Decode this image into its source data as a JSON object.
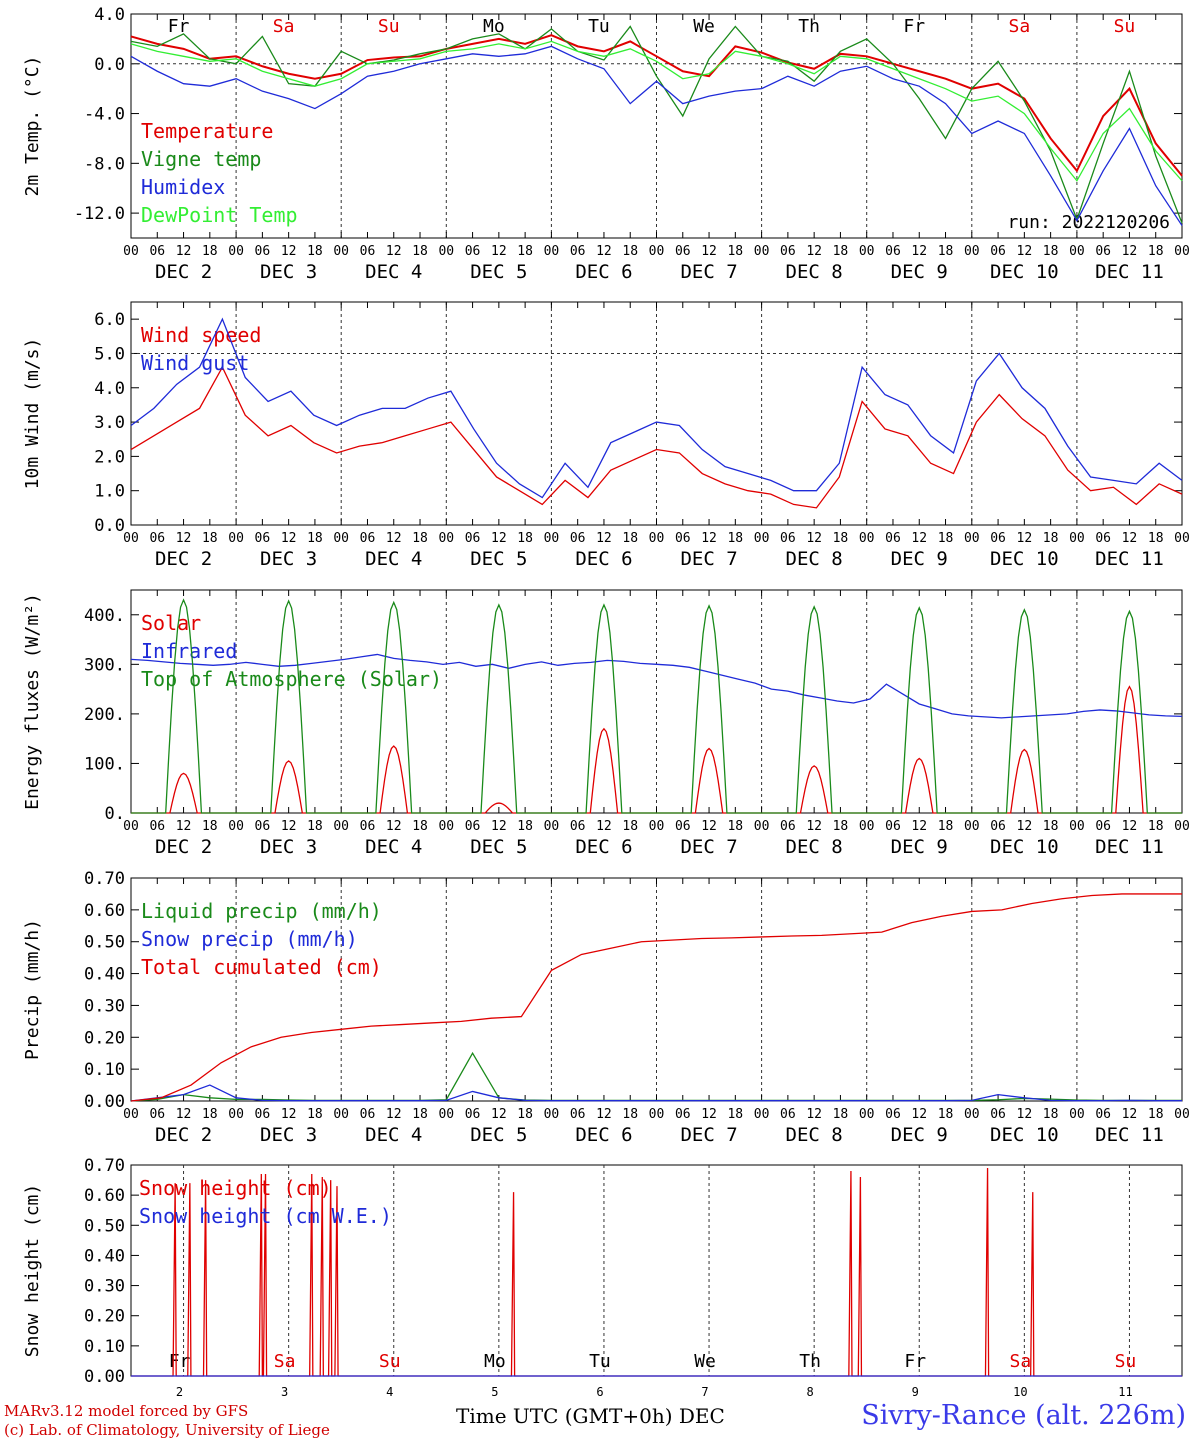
{
  "footer": {
    "model_line": "MARv3.12 model forced by GFS",
    "credit_line": "(c) Lab. of Climatology, University of Liege",
    "time_axis_label": "Time UTC (GMT+0h) DEC",
    "station": "Sivry-Rance (alt. 226m)"
  },
  "chart_data": [
    {
      "type": "line",
      "ylabel": "2m Temp. (°C)",
      "ylim": [
        -14,
        4
      ],
      "yticks": [
        "4.0",
        "0.0",
        "-4.0",
        "-8.0",
        "-12.0"
      ],
      "day_labels": [
        "Fr",
        "Sa",
        "Su",
        "Mo",
        "Tu",
        "We",
        "Th",
        "Fr",
        "Sa",
        "Su"
      ],
      "day_colors": [
        "#000000",
        "#e00000",
        "#e00000",
        "#000000",
        "#000000",
        "#000000",
        "#000000",
        "#000000",
        "#e00000",
        "#e00000"
      ],
      "date_labels": [
        "DEC  2",
        "DEC  3",
        "DEC  4",
        "DEC  5",
        "DEC  6",
        "DEC  7",
        "DEC  8",
        "DEC  9",
        "DEC 10",
        "DEC 11"
      ],
      "hour_labels": [
        "00",
        "06",
        "12",
        "18"
      ],
      "annotation": "run: 2022120206",
      "x_days": 10,
      "series": [
        {
          "name": "Temperature",
          "color": "#e00000",
          "values": [
            2.2,
            1.6,
            1.2,
            0.4,
            0.6,
            -0.2,
            -0.8,
            -1.2,
            -0.8,
            0.3,
            0.5,
            0.6,
            1.2,
            1.6,
            2.0,
            1.6,
            2.3,
            1.4,
            1.0,
            1.8,
            0.6,
            -0.6,
            -1.0,
            1.4,
            0.9,
            0.1,
            -0.4,
            0.8,
            0.6,
            0.0,
            -0.6,
            -1.2,
            -2.0,
            -1.6,
            -2.8,
            -6.0,
            -8.6,
            -4.2,
            -2.0,
            -6.4,
            -9.0
          ]
        },
        {
          "name": "Vigne temp",
          "color": "#1a8a1a",
          "values": [
            1.8,
            1.4,
            2.4,
            0.4,
            0.0,
            2.2,
            -1.6,
            -1.8,
            1.0,
            0.0,
            0.3,
            0.8,
            1.2,
            2.0,
            2.4,
            1.2,
            2.8,
            1.0,
            0.3,
            3.0,
            -1.0,
            -4.2,
            0.4,
            3.0,
            0.6,
            0.2,
            -1.4,
            1.0,
            2.0,
            0.0,
            -2.8,
            -6.0,
            -2.0,
            0.2,
            -3.0,
            -7.0,
            -12.5,
            -6.4,
            -0.6,
            -7.4,
            -12.8
          ]
        },
        {
          "name": "Humidex",
          "color": "#1f2bd8",
          "values": [
            0.6,
            -0.6,
            -1.6,
            -1.8,
            -1.2,
            -2.2,
            -2.8,
            -3.6,
            -2.4,
            -1.0,
            -0.6,
            0.0,
            0.4,
            0.8,
            0.6,
            0.8,
            1.4,
            0.4,
            -0.4,
            -3.2,
            -1.4,
            -3.2,
            -2.6,
            -2.2,
            -2.0,
            -1.0,
            -1.8,
            -0.6,
            -0.2,
            -1.2,
            -1.8,
            -3.2,
            -5.6,
            -4.6,
            -5.6,
            -9.0,
            -12.6,
            -8.6,
            -5.2,
            -9.8,
            -13.0
          ]
        },
        {
          "name": "DewPoint Temp",
          "color": "#33ee33",
          "values": [
            1.6,
            1.0,
            0.6,
            0.2,
            0.4,
            -0.6,
            -1.2,
            -1.8,
            -1.2,
            0.0,
            0.2,
            0.4,
            1.0,
            1.2,
            1.6,
            1.2,
            1.8,
            1.0,
            0.6,
            1.2,
            0.2,
            -1.2,
            -0.8,
            1.0,
            0.6,
            0.0,
            -0.8,
            0.6,
            0.4,
            -0.4,
            -1.2,
            -2.0,
            -3.0,
            -2.6,
            -4.0,
            -6.8,
            -9.4,
            -5.6,
            -3.6,
            -7.0,
            -9.4
          ]
        }
      ]
    },
    {
      "type": "line",
      "ylabel": "10m Wind (m/s)",
      "ylim": [
        0,
        6.5
      ],
      "yticks": [
        "6.0",
        "5.0",
        "4.0",
        "3.0",
        "2.0",
        "1.0",
        "0.0"
      ],
      "dashed_level": 5.0,
      "date_labels": [
        "DEC  2",
        "DEC  3",
        "DEC  4",
        "DEC  5",
        "DEC  6",
        "DEC  7",
        "DEC  8",
        "DEC  9",
        "DEC 10",
        "DEC 11"
      ],
      "hour_labels": [
        "00",
        "06",
        "12",
        "18"
      ],
      "x_days": 10,
      "series": [
        {
          "name": "Wind speed",
          "color": "#e00000",
          "values": [
            2.2,
            2.6,
            3.0,
            3.4,
            4.6,
            3.2,
            2.6,
            2.9,
            2.4,
            2.1,
            2.3,
            2.4,
            2.6,
            2.8,
            3.0,
            2.2,
            1.4,
            1.0,
            0.6,
            1.3,
            0.8,
            1.6,
            1.9,
            2.2,
            2.1,
            1.5,
            1.2,
            1.0,
            0.9,
            0.6,
            0.5,
            1.4,
            3.6,
            2.8,
            2.6,
            1.8,
            1.5,
            3.0,
            3.8,
            3.1,
            2.6,
            1.6,
            1.0,
            1.1,
            0.6,
            1.2,
            0.9
          ]
        },
        {
          "name": "Wind gust",
          "color": "#1f2bd8",
          "values": [
            2.9,
            3.4,
            4.1,
            4.6,
            6.0,
            4.3,
            3.6,
            3.9,
            3.2,
            2.9,
            3.2,
            3.4,
            3.4,
            3.7,
            3.9,
            2.8,
            1.8,
            1.2,
            0.8,
            1.8,
            1.1,
            2.4,
            2.7,
            3.0,
            2.9,
            2.2,
            1.7,
            1.5,
            1.3,
            1.0,
            1.0,
            1.8,
            4.6,
            3.8,
            3.5,
            2.6,
            2.1,
            4.2,
            5.0,
            4.0,
            3.4,
            2.3,
            1.4,
            1.3,
            1.2,
            1.8,
            1.3
          ]
        }
      ]
    },
    {
      "type": "line",
      "ylabel": "Energy fluxes (W/m²)",
      "ylim": [
        0,
        450
      ],
      "yticks": [
        "400.",
        "300.",
        "200.",
        "100.",
        "0."
      ],
      "date_labels": [
        "DEC  2",
        "DEC  3",
        "DEC  4",
        "DEC  5",
        "DEC  6",
        "DEC  7",
        "DEC  8",
        "DEC  9",
        "DEC 10",
        "DEC 11"
      ],
      "hour_labels": [
        "00",
        "06",
        "12",
        "18"
      ],
      "x_days": 10,
      "series": [
        {
          "name": "Solar",
          "color": "#e00000",
          "daily_peaks": [
            80,
            105,
            135,
            20,
            170,
            130,
            95,
            110,
            128,
            255
          ]
        },
        {
          "name": "Infrared",
          "color": "#1f2bd8",
          "values": [
            310,
            308,
            305,
            302,
            300,
            298,
            300,
            304,
            300,
            296,
            298,
            302,
            306,
            310,
            315,
            320,
            312,
            308,
            305,
            300,
            304,
            296,
            300,
            292,
            300,
            305,
            298,
            302,
            304,
            308,
            306,
            302,
            300,
            298,
            294,
            286,
            278,
            270,
            262,
            250,
            246,
            238,
            232,
            226,
            222,
            230,
            260,
            240,
            220,
            210,
            200,
            196,
            194,
            192,
            194,
            196,
            198,
            200,
            205,
            208,
            206,
            202,
            198,
            196,
            195
          ]
        },
        {
          "name": "Top of Atmosphere (Solar)",
          "color": "#1a8a1a",
          "daily_peaks": [
            430,
            428,
            425,
            420,
            420,
            418,
            416,
            414,
            410,
            407
          ]
        }
      ]
    },
    {
      "type": "line",
      "ylabel": "Precip (mm/h)",
      "ylim": [
        0,
        0.7
      ],
      "yticks": [
        "0.70",
        "0.60",
        "0.50",
        "0.40",
        "0.30",
        "0.20",
        "0.10",
        "0.00"
      ],
      "date_labels": [
        "DEC  2",
        "DEC  3",
        "DEC  4",
        "DEC  5",
        "DEC  6",
        "DEC  7",
        "DEC  8",
        "DEC  9",
        "DEC 10",
        "DEC 11"
      ],
      "hour_labels": [
        "00",
        "06",
        "12",
        "18"
      ],
      "x_days": 10,
      "series": [
        {
          "name": "Liquid precip (mm/h)",
          "color": "#1a8a1a",
          "values": [
            0,
            0.005,
            0.02,
            0.01,
            0.005,
            0.005,
            0.003,
            0.002,
            0.002,
            0.002,
            0.002,
            0.002,
            0.004,
            0.15,
            0.01,
            0.003,
            0.002,
            0.002,
            0.002,
            0.002,
            0.002,
            0.002,
            0.002,
            0.002,
            0.002,
            0.002,
            0.002,
            0.002,
            0.002,
            0.002,
            0.002,
            0.002,
            0.002,
            0.004,
            0.008,
            0.006,
            0.003,
            0.002,
            0.002,
            0.002,
            0.002
          ]
        },
        {
          "name": "Snow precip (mm/h)",
          "color": "#1f2bd8",
          "values": [
            0,
            0.01,
            0.02,
            0.05,
            0.01,
            0.002,
            0.001,
            0.001,
            0.001,
            0.001,
            0.001,
            0.001,
            0.002,
            0.03,
            0.01,
            0.002,
            0.001,
            0.001,
            0.001,
            0.001,
            0.001,
            0.001,
            0.001,
            0.001,
            0.001,
            0.001,
            0.001,
            0.001,
            0.001,
            0.001,
            0.001,
            0.001,
            0.002,
            0.02,
            0.01,
            0.002,
            0.001,
            0.001,
            0.002,
            0.001,
            0.001
          ]
        },
        {
          "name": "Total cumulated (cm)",
          "color": "#e00000",
          "values": [
            0.0,
            0.01,
            0.05,
            0.12,
            0.17,
            0.2,
            0.215,
            0.225,
            0.235,
            0.24,
            0.245,
            0.25,
            0.26,
            0.265,
            0.41,
            0.46,
            0.48,
            0.5,
            0.505,
            0.51,
            0.512,
            0.515,
            0.518,
            0.52,
            0.525,
            0.53,
            0.56,
            0.58,
            0.595,
            0.6,
            0.62,
            0.635,
            0.645,
            0.65,
            0.65,
            0.65
          ]
        }
      ]
    },
    {
      "type": "line",
      "ylabel": "Snow height (cm)",
      "ylim": [
        0,
        0.7
      ],
      "yticks": [
        "0.70",
        "0.60",
        "0.50",
        "0.40",
        "0.30",
        "0.20",
        "0.10",
        "0.00"
      ],
      "day_labels": [
        "Fr",
        "Sa",
        "Su",
        "Mo",
        "Tu",
        "We",
        "Th",
        "Fr",
        "Sa",
        "Su"
      ],
      "day_colors": [
        "#000000",
        "#e00000",
        "#e00000",
        "#000000",
        "#000000",
        "#000000",
        "#000000",
        "#000000",
        "#e00000",
        "#e00000"
      ],
      "day_numbers": [
        "2",
        "3",
        "4",
        "5",
        "6",
        "7",
        "8",
        "9",
        "10",
        "11"
      ],
      "x_days": 10,
      "series": [
        {
          "name": "Snow height (cm)",
          "color": "#e00000",
          "spikes": [
            [
              0.42,
              0.64
            ],
            [
              0.56,
              0.64
            ],
            [
              0.71,
              0.65
            ],
            [
              1.24,
              0.67
            ],
            [
              1.28,
              0.67
            ],
            [
              1.72,
              0.67
            ],
            [
              1.82,
              0.66
            ],
            [
              1.9,
              0.65
            ],
            [
              1.96,
              0.63
            ],
            [
              3.64,
              0.61
            ],
            [
              6.85,
              0.68
            ],
            [
              6.94,
              0.66
            ],
            [
              8.15,
              0.69
            ],
            [
              8.58,
              0.61
            ]
          ]
        },
        {
          "name": "Snow height (cm W.E.)",
          "color": "#1f2bd8",
          "values": [
            0
          ]
        }
      ]
    }
  ]
}
